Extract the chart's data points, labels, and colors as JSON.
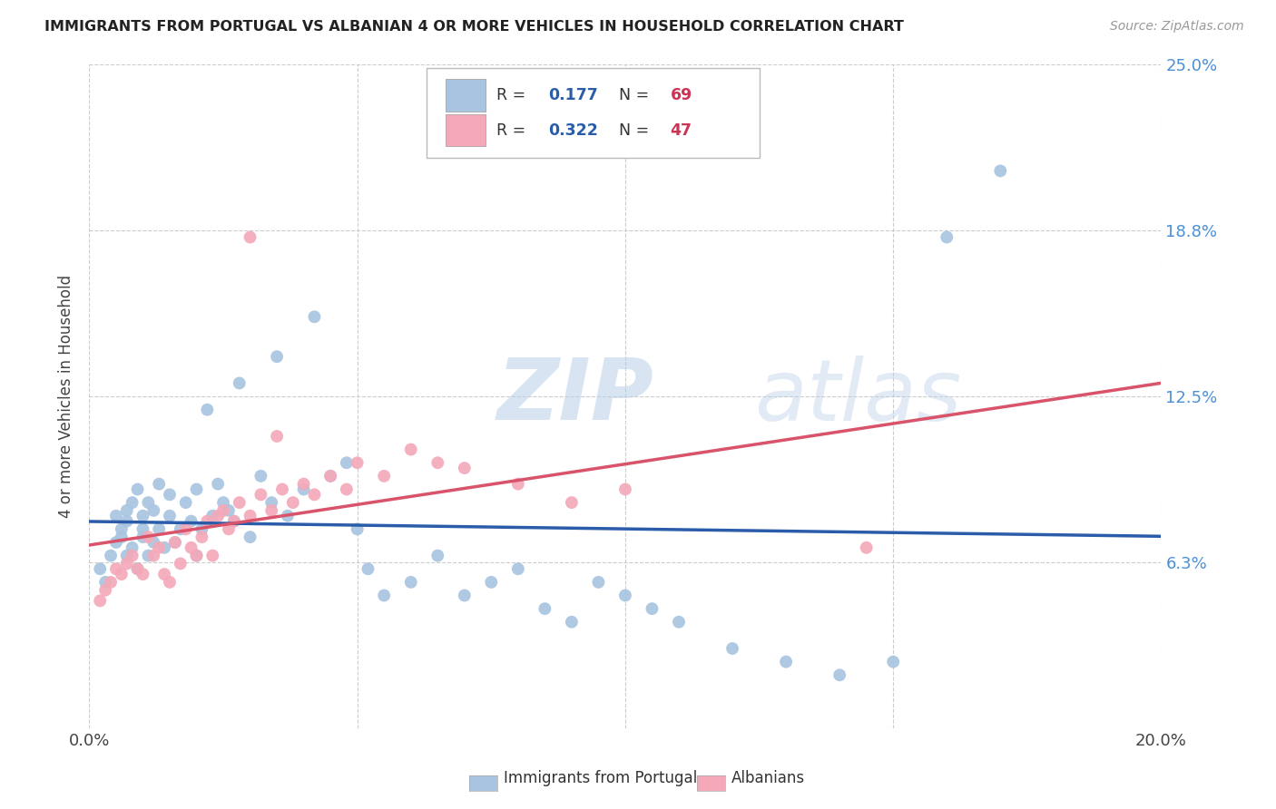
{
  "title": "IMMIGRANTS FROM PORTUGAL VS ALBANIAN 4 OR MORE VEHICLES IN HOUSEHOLD CORRELATION CHART",
  "source": "Source: ZipAtlas.com",
  "ylabel": "4 or more Vehicles in Household",
  "x_min": 0.0,
  "x_max": 0.2,
  "y_min": 0.0,
  "y_max": 0.25,
  "portugal_color": "#a8c4e0",
  "albanian_color": "#f4a8b8",
  "portugal_line_color": "#2a5caa",
  "albanian_line_color": "#d9546a",
  "portugal_R": 0.177,
  "portugal_N": 69,
  "albanian_R": 0.322,
  "albanian_N": 47,
  "watermark_zip": "ZIP",
  "watermark_atlas": "atlas",
  "background_color": "#ffffff",
  "grid_color": "#cccccc",
  "title_color": "#222222",
  "right_axis_label_color": "#4a90d9",
  "footer_portugal_label": "Immigrants from Portugal",
  "footer_albanian_label": "Albanians",
  "portugal_scatter_x": [
    0.002,
    0.003,
    0.004,
    0.005,
    0.005,
    0.006,
    0.006,
    0.007,
    0.007,
    0.007,
    0.008,
    0.008,
    0.009,
    0.009,
    0.01,
    0.01,
    0.01,
    0.011,
    0.011,
    0.012,
    0.012,
    0.013,
    0.013,
    0.014,
    0.015,
    0.015,
    0.016,
    0.017,
    0.018,
    0.019,
    0.02,
    0.02,
    0.021,
    0.022,
    0.023,
    0.024,
    0.025,
    0.026,
    0.027,
    0.028,
    0.03,
    0.032,
    0.034,
    0.035,
    0.037,
    0.04,
    0.042,
    0.045,
    0.048,
    0.05,
    0.052,
    0.055,
    0.06,
    0.065,
    0.07,
    0.075,
    0.08,
    0.085,
    0.09,
    0.095,
    0.1,
    0.105,
    0.11,
    0.12,
    0.13,
    0.14,
    0.15,
    0.16,
    0.17
  ],
  "portugal_scatter_y": [
    0.06,
    0.055,
    0.065,
    0.07,
    0.08,
    0.072,
    0.075,
    0.078,
    0.082,
    0.065,
    0.068,
    0.085,
    0.06,
    0.09,
    0.072,
    0.08,
    0.075,
    0.065,
    0.085,
    0.07,
    0.082,
    0.075,
    0.092,
    0.068,
    0.08,
    0.088,
    0.07,
    0.075,
    0.085,
    0.078,
    0.065,
    0.09,
    0.075,
    0.12,
    0.08,
    0.092,
    0.085,
    0.082,
    0.078,
    0.13,
    0.072,
    0.095,
    0.085,
    0.14,
    0.08,
    0.09,
    0.155,
    0.095,
    0.1,
    0.075,
    0.06,
    0.05,
    0.055,
    0.065,
    0.05,
    0.055,
    0.06,
    0.045,
    0.04,
    0.055,
    0.05,
    0.045,
    0.04,
    0.03,
    0.025,
    0.02,
    0.025,
    0.185,
    0.21
  ],
  "albanian_scatter_x": [
    0.002,
    0.003,
    0.004,
    0.005,
    0.006,
    0.007,
    0.008,
    0.009,
    0.01,
    0.011,
    0.012,
    0.013,
    0.014,
    0.015,
    0.016,
    0.017,
    0.018,
    0.019,
    0.02,
    0.021,
    0.022,
    0.023,
    0.024,
    0.025,
    0.026,
    0.027,
    0.028,
    0.03,
    0.032,
    0.034,
    0.036,
    0.038,
    0.04,
    0.042,
    0.045,
    0.048,
    0.05,
    0.055,
    0.06,
    0.065,
    0.07,
    0.08,
    0.09,
    0.1,
    0.03,
    0.035,
    0.145
  ],
  "albanian_scatter_y": [
    0.048,
    0.052,
    0.055,
    0.06,
    0.058,
    0.062,
    0.065,
    0.06,
    0.058,
    0.072,
    0.065,
    0.068,
    0.058,
    0.055,
    0.07,
    0.062,
    0.075,
    0.068,
    0.065,
    0.072,
    0.078,
    0.065,
    0.08,
    0.082,
    0.075,
    0.078,
    0.085,
    0.08,
    0.088,
    0.082,
    0.09,
    0.085,
    0.092,
    0.088,
    0.095,
    0.09,
    0.1,
    0.095,
    0.105,
    0.1,
    0.098,
    0.092,
    0.085,
    0.09,
    0.185,
    0.11,
    0.068
  ]
}
